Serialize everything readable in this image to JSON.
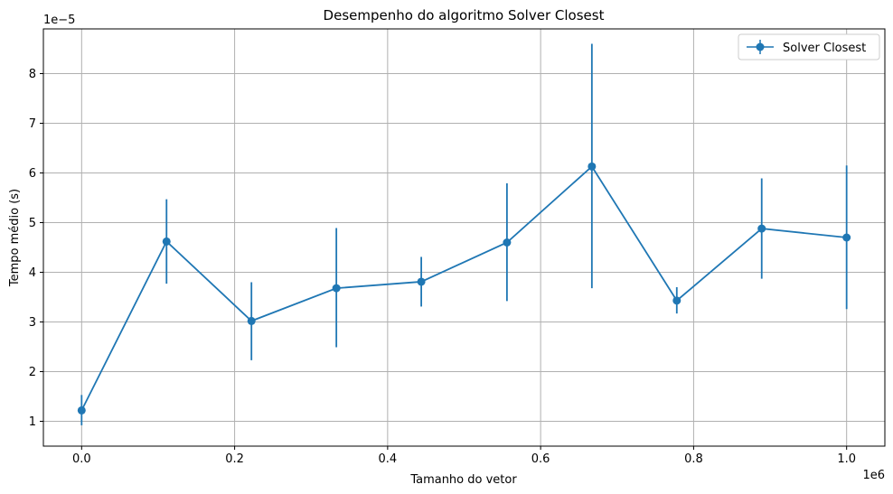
{
  "chart_data": {
    "type": "line",
    "title": "Desempenho do algoritmo Solver Closest",
    "xlabel": "Tamanho do vetor",
    "ylabel": "Tempo médio (s)",
    "x_offset_label": "1e6",
    "y_offset_label": "1e−5",
    "xlim": [
      -0.05,
      1.05
    ],
    "ylim": [
      0.5,
      8.9
    ],
    "x_ticks": [
      0.0,
      0.2,
      0.4,
      0.6,
      0.8,
      1.0
    ],
    "x_tick_labels": [
      "0.0",
      "0.2",
      "0.4",
      "0.6",
      "0.8",
      "1.0"
    ],
    "y_ticks": [
      1,
      2,
      3,
      4,
      5,
      6,
      7,
      8
    ],
    "y_tick_labels": [
      "1",
      "2",
      "3",
      "4",
      "5",
      "6",
      "7",
      "8"
    ],
    "grid": true,
    "legend_position": "top-right",
    "series": [
      {
        "name": "Solver Closest",
        "color": "#1f77b4",
        "marker": "circle",
        "error_bars": true,
        "x": [
          0.0,
          0.111,
          0.222,
          0.333,
          0.444,
          0.556,
          0.667,
          0.778,
          0.889,
          1.0
        ],
        "y": [
          1.22,
          4.62,
          3.02,
          3.68,
          3.81,
          4.6,
          6.13,
          3.43,
          4.88,
          4.7
        ],
        "yerr_low": [
          0.92,
          3.77,
          2.23,
          2.49,
          3.31,
          3.42,
          3.68,
          3.17,
          3.87,
          3.26
        ],
        "yerr_high": [
          1.53,
          5.47,
          3.8,
          4.89,
          4.31,
          5.79,
          8.6,
          3.7,
          5.89,
          6.15
        ]
      }
    ]
  }
}
